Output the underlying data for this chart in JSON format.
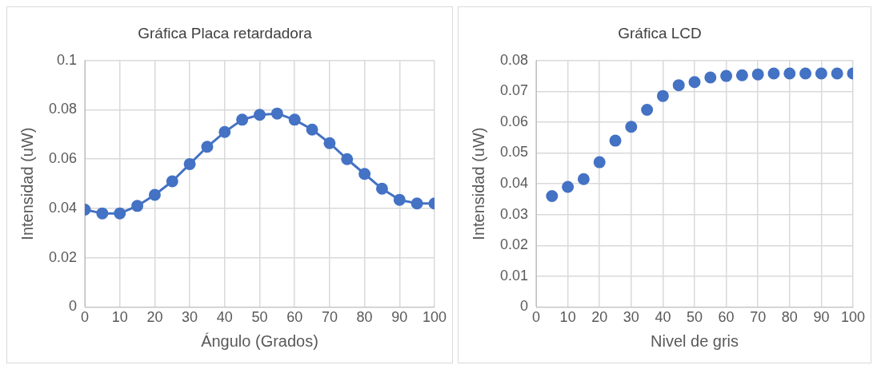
{
  "chart_data": [
    {
      "type": "line",
      "title": "Gráfica Placa retardadora",
      "xlabel": "Ángulo (Grados)",
      "ylabel": "Intensidad (uW)",
      "x": [
        0,
        5,
        10,
        15,
        20,
        25,
        30,
        35,
        40,
        45,
        50,
        55,
        60,
        65,
        70,
        75,
        80,
        85,
        90,
        95,
        100
      ],
      "series": [
        {
          "color": "#4472c4",
          "values": [
            0.0395,
            0.038,
            0.038,
            0.041,
            0.0455,
            0.051,
            0.058,
            0.065,
            0.071,
            0.076,
            0.078,
            0.0785,
            0.076,
            0.072,
            0.0665,
            0.06,
            0.054,
            0.048,
            0.0435,
            0.042,
            0.042
          ]
        }
      ],
      "xlim": [
        0,
        100
      ],
      "xticks": [
        0,
        10,
        20,
        30,
        40,
        50,
        60,
        70,
        80,
        90,
        100
      ],
      "ylim": [
        0,
        0.1
      ],
      "yticks": [
        0,
        0.02,
        0.04,
        0.06,
        0.08,
        0.1
      ],
      "grid": true,
      "marker": "circle",
      "line_style": "solid"
    },
    {
      "type": "scatter",
      "title": "Gráfica LCD",
      "xlabel": "Nivel de gris",
      "ylabel": "Intensidad (uW)",
      "x": [
        5,
        10,
        15,
        20,
        25,
        30,
        35,
        40,
        45,
        50,
        55,
        60,
        65,
        70,
        75,
        80,
        85,
        90,
        95,
        100
      ],
      "series": [
        {
          "color": "#4472c4",
          "values": [
            0.036,
            0.039,
            0.0415,
            0.047,
            0.054,
            0.0585,
            0.064,
            0.0685,
            0.072,
            0.073,
            0.0745,
            0.075,
            0.0752,
            0.0755,
            0.0758,
            0.0758,
            0.0758,
            0.0758,
            0.0758,
            0.0758
          ]
        }
      ],
      "xlim": [
        0,
        100
      ],
      "xticks": [
        0,
        10,
        20,
        30,
        40,
        50,
        60,
        70,
        80,
        90,
        100
      ],
      "ylim": [
        0,
        0.08
      ],
      "yticks": [
        0,
        0.01,
        0.02,
        0.03,
        0.04,
        0.05,
        0.06,
        0.07,
        0.08
      ],
      "grid": true,
      "marker": "circle"
    }
  ]
}
